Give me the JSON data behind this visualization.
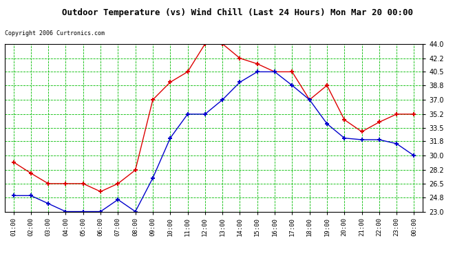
{
  "title": "Outdoor Temperature (vs) Wind Chill (Last 24 Hours) Mon Mar 20 00:00",
  "copyright": "Copyright 2006 Curtronics.com",
  "hours": [
    "01:00",
    "02:00",
    "03:00",
    "04:00",
    "05:00",
    "06:00",
    "07:00",
    "08:00",
    "09:00",
    "10:00",
    "11:00",
    "12:00",
    "13:00",
    "14:00",
    "15:00",
    "16:00",
    "17:00",
    "18:00",
    "19:00",
    "20:00",
    "21:00",
    "22:00",
    "23:00",
    "00:00"
  ],
  "red_temp": [
    29.2,
    27.8,
    26.5,
    26.5,
    26.5,
    25.5,
    26.5,
    28.2,
    37.0,
    39.2,
    40.5,
    44.0,
    44.0,
    42.2,
    41.5,
    40.5,
    40.5,
    37.0,
    38.8,
    34.5,
    33.0,
    34.2,
    35.2,
    35.2
  ],
  "blue_windchill": [
    25.0,
    25.0,
    24.0,
    23.0,
    23.0,
    23.0,
    24.5,
    23.0,
    27.2,
    32.2,
    35.2,
    35.2,
    37.0,
    39.2,
    40.5,
    40.5,
    38.8,
    37.0,
    34.0,
    32.2,
    32.0,
    32.0,
    31.5,
    30.0
  ],
  "ylim": [
    23.0,
    44.0
  ],
  "yticks": [
    23.0,
    24.8,
    26.5,
    28.2,
    30.0,
    31.8,
    33.5,
    35.2,
    37.0,
    38.8,
    40.5,
    42.2,
    44.0
  ],
  "bg_color": "#ffffff",
  "plot_bg_color": "#ffffff",
  "grid_color": "#00bb00",
  "red_color": "#dd0000",
  "blue_color": "#0000cc",
  "title_bg_color": "#c0c0c0"
}
